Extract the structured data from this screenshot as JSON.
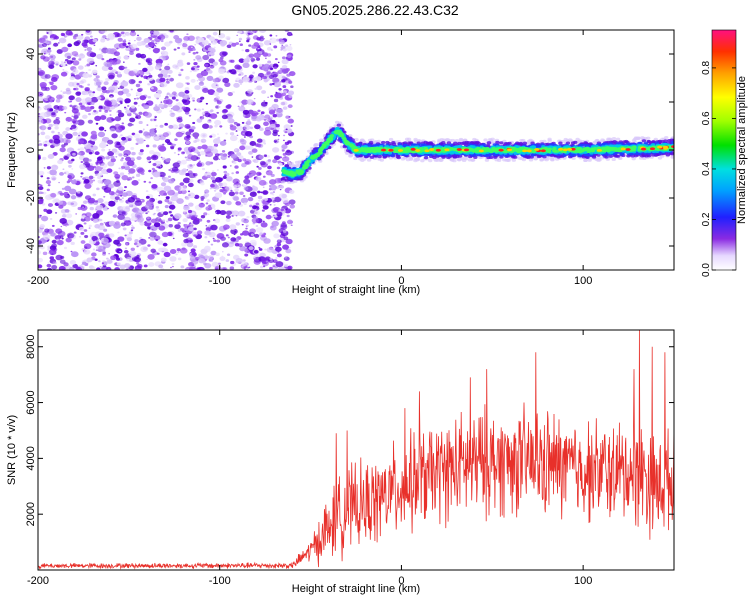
{
  "title": "GN05.2025.286.22.43.C32",
  "chart_data": [
    {
      "type": "heatmap",
      "title": "GN05.2025.286.22.43.C32",
      "xlabel": "Height of straight line (km)",
      "ylabel": "Frequency (Hz)",
      "xlim": [
        -200,
        150
      ],
      "ylim": [
        -50,
        50
      ],
      "xticks": [
        -200,
        -100,
        0,
        100
      ],
      "yticks": [
        -40,
        -20,
        0,
        20,
        40
      ],
      "colorbar": {
        "label": "Normalized spectral amplitude",
        "range": [
          0,
          0.95
        ],
        "ticks": [
          0.0,
          0.2,
          0.4,
          0.6,
          0.8
        ],
        "tick_labels": [
          "0.0",
          "0.2",
          "0.4",
          "0.6",
          "0.8"
        ]
      },
      "noise_region_x": [
        -200,
        -60
      ],
      "signal_track": {
        "x": [
          -65,
          -60,
          -55,
          -50,
          -45,
          -40,
          -35,
          -30,
          -25,
          -20,
          0,
          50,
          100,
          150
        ],
        "frequency": [
          -9,
          -10,
          -9,
          -4,
          -1,
          4,
          8,
          3,
          0,
          0,
          0,
          0,
          0,
          1
        ]
      }
    },
    {
      "type": "line",
      "xlabel": "Height of straight line (km)",
      "ylabel": "SNR (10 * v/v)",
      "xlim": [
        -200,
        150
      ],
      "ylim": [
        0,
        8600
      ],
      "xticks": [
        -200,
        -100,
        0,
        100
      ],
      "yticks": [
        2000,
        4000,
        6000,
        8000
      ],
      "color": "#e8302a",
      "envelope": {
        "x": [
          -200,
          -60,
          -50,
          -40,
          -30,
          -20,
          -10,
          0,
          20,
          40,
          60,
          80,
          100,
          120,
          130,
          140,
          150
        ],
        "median": [
          150,
          160,
          700,
          1500,
          2200,
          2300,
          2600,
          3000,
          3500,
          3800,
          3900,
          3800,
          3600,
          3500,
          3600,
          3000,
          3200
        ],
        "spread": [
          80,
          100,
          400,
          1200,
          1400,
          1400,
          1500,
          1600,
          1700,
          1800,
          1800,
          1800,
          1700,
          1700,
          1900,
          1700,
          1700
        ]
      },
      "peaks": [
        {
          "x": -36,
          "y": 4900
        },
        {
          "x": -30,
          "y": 5000
        },
        {
          "x": 2,
          "y": 5800
        },
        {
          "x": 10,
          "y": 6400
        },
        {
          "x": 38,
          "y": 6900
        },
        {
          "x": 47,
          "y": 7200
        },
        {
          "x": 74,
          "y": 7800
        },
        {
          "x": 128,
          "y": 7200
        },
        {
          "x": 131,
          "y": 8600
        },
        {
          "x": 138,
          "y": 8000
        },
        {
          "x": 145,
          "y": 7800
        }
      ]
    }
  ]
}
